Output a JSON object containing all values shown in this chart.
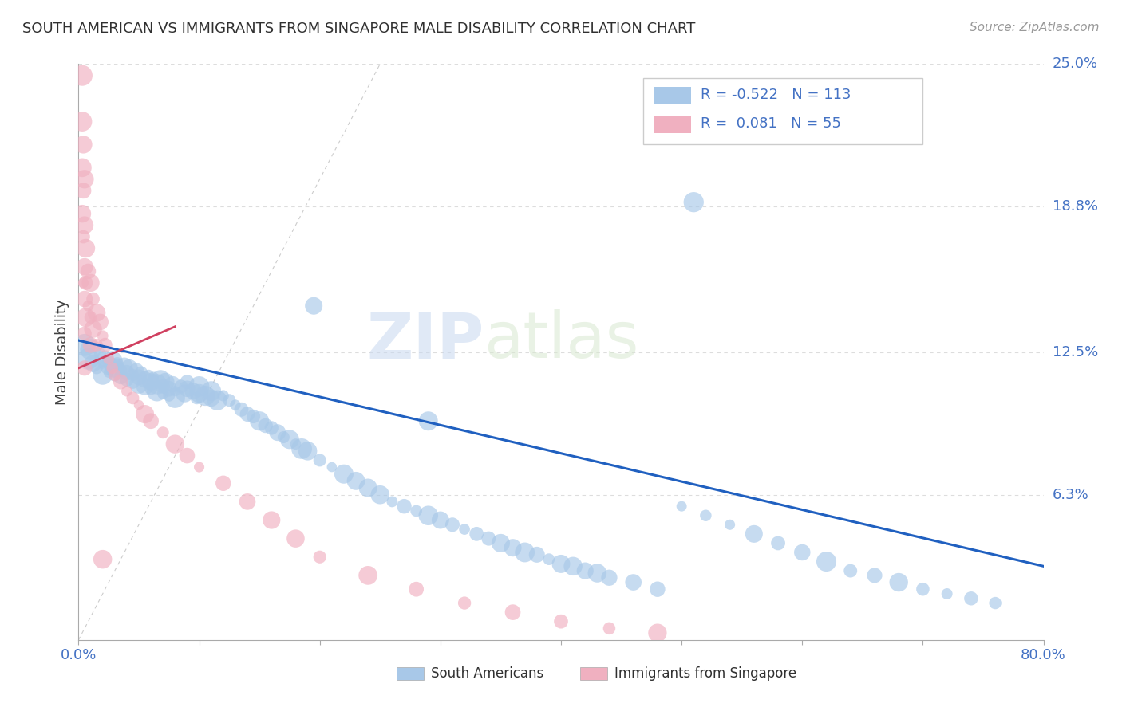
{
  "title": "SOUTH AMERICAN VS IMMIGRANTS FROM SINGAPORE MALE DISABILITY CORRELATION CHART",
  "source": "Source: ZipAtlas.com",
  "ylabel": "Male Disability",
  "watermark_zip": "ZIP",
  "watermark_atlas": "atlas",
  "xlim": [
    0.0,
    0.8
  ],
  "ylim": [
    0.0,
    0.25
  ],
  "xticks": [
    0.0,
    0.1,
    0.2,
    0.3,
    0.4,
    0.5,
    0.6,
    0.7,
    0.8
  ],
  "ytick_positions": [
    0.0,
    0.063,
    0.125,
    0.188,
    0.25
  ],
  "ytick_labels": [
    "",
    "6.3%",
    "12.5%",
    "18.8%",
    "25.0%"
  ],
  "R_blue": -0.522,
  "N_blue": 113,
  "R_pink": 0.081,
  "N_pink": 55,
  "blue_color": "#a8c8e8",
  "pink_color": "#f0b0c0",
  "blue_line_color": "#2060c0",
  "pink_line_color": "#d04060",
  "grid_color": "#dddddd",
  "title_color": "#303030",
  "right_label_color": "#4472c4",
  "blue_scatter_x": [
    0.005,
    0.008,
    0.01,
    0.012,
    0.015,
    0.018,
    0.02,
    0.02,
    0.022,
    0.025,
    0.025,
    0.028,
    0.03,
    0.03,
    0.032,
    0.035,
    0.035,
    0.038,
    0.04,
    0.04,
    0.042,
    0.045,
    0.045,
    0.048,
    0.05,
    0.05,
    0.052,
    0.055,
    0.055,
    0.058,
    0.06,
    0.06,
    0.062,
    0.065,
    0.065,
    0.068,
    0.07,
    0.07,
    0.072,
    0.075,
    0.075,
    0.078,
    0.08,
    0.08,
    0.085,
    0.088,
    0.09,
    0.09,
    0.095,
    0.098,
    0.1,
    0.1,
    0.105,
    0.11,
    0.11,
    0.115,
    0.12,
    0.125,
    0.13,
    0.135,
    0.14,
    0.145,
    0.15,
    0.155,
    0.16,
    0.165,
    0.17,
    0.175,
    0.18,
    0.185,
    0.19,
    0.2,
    0.21,
    0.22,
    0.23,
    0.24,
    0.25,
    0.26,
    0.27,
    0.28,
    0.29,
    0.3,
    0.31,
    0.32,
    0.33,
    0.34,
    0.35,
    0.36,
    0.37,
    0.38,
    0.39,
    0.4,
    0.41,
    0.42,
    0.43,
    0.44,
    0.46,
    0.48,
    0.5,
    0.52,
    0.54,
    0.56,
    0.58,
    0.6,
    0.62,
    0.64,
    0.66,
    0.68,
    0.7,
    0.72,
    0.74,
    0.76,
    0.51,
    0.29,
    0.195
  ],
  "blue_scatter_y": [
    0.128,
    0.122,
    0.126,
    0.12,
    0.118,
    0.124,
    0.12,
    0.115,
    0.122,
    0.119,
    0.116,
    0.121,
    0.118,
    0.115,
    0.12,
    0.117,
    0.114,
    0.119,
    0.116,
    0.113,
    0.118,
    0.115,
    0.112,
    0.117,
    0.114,
    0.111,
    0.116,
    0.113,
    0.11,
    0.115,
    0.112,
    0.109,
    0.114,
    0.111,
    0.108,
    0.113,
    0.11,
    0.107,
    0.112,
    0.109,
    0.106,
    0.111,
    0.108,
    0.105,
    0.11,
    0.107,
    0.112,
    0.109,
    0.108,
    0.105,
    0.11,
    0.107,
    0.106,
    0.108,
    0.105,
    0.104,
    0.106,
    0.104,
    0.102,
    0.1,
    0.098,
    0.097,
    0.095,
    0.093,
    0.092,
    0.09,
    0.088,
    0.087,
    0.085,
    0.083,
    0.082,
    0.078,
    0.075,
    0.072,
    0.069,
    0.066,
    0.063,
    0.06,
    0.058,
    0.056,
    0.054,
    0.052,
    0.05,
    0.048,
    0.046,
    0.044,
    0.042,
    0.04,
    0.038,
    0.037,
    0.035,
    0.033,
    0.032,
    0.03,
    0.029,
    0.027,
    0.025,
    0.022,
    0.058,
    0.054,
    0.05,
    0.046,
    0.042,
    0.038,
    0.034,
    0.03,
    0.028,
    0.025,
    0.022,
    0.02,
    0.018,
    0.016,
    0.19,
    0.095,
    0.145
  ],
  "pink_scatter_x": [
    0.003,
    0.003,
    0.003,
    0.003,
    0.004,
    0.004,
    0.004,
    0.004,
    0.005,
    0.005,
    0.005,
    0.005,
    0.005,
    0.005,
    0.006,
    0.006,
    0.006,
    0.008,
    0.008,
    0.01,
    0.01,
    0.01,
    0.012,
    0.012,
    0.015,
    0.015,
    0.018,
    0.02,
    0.022,
    0.025,
    0.028,
    0.03,
    0.035,
    0.04,
    0.045,
    0.05,
    0.055,
    0.06,
    0.07,
    0.08,
    0.09,
    0.1,
    0.12,
    0.14,
    0.16,
    0.18,
    0.2,
    0.24,
    0.28,
    0.32,
    0.36,
    0.4,
    0.44,
    0.48,
    0.02
  ],
  "pink_scatter_y": [
    0.245,
    0.225,
    0.205,
    0.185,
    0.215,
    0.195,
    0.175,
    0.155,
    0.2,
    0.18,
    0.162,
    0.148,
    0.133,
    0.118,
    0.17,
    0.155,
    0.14,
    0.16,
    0.145,
    0.155,
    0.14,
    0.128,
    0.148,
    0.135,
    0.142,
    0.128,
    0.138,
    0.132,
    0.128,
    0.122,
    0.118,
    0.115,
    0.112,
    0.108,
    0.105,
    0.102,
    0.098,
    0.095,
    0.09,
    0.085,
    0.08,
    0.075,
    0.068,
    0.06,
    0.052,
    0.044,
    0.036,
    0.028,
    0.022,
    0.016,
    0.012,
    0.008,
    0.005,
    0.003,
    0.035
  ],
  "blue_line_x": [
    0.0,
    0.8
  ],
  "blue_line_y": [
    0.13,
    0.032
  ],
  "pink_line_x": [
    0.0,
    0.08
  ],
  "pink_line_y": [
    0.118,
    0.136
  ]
}
